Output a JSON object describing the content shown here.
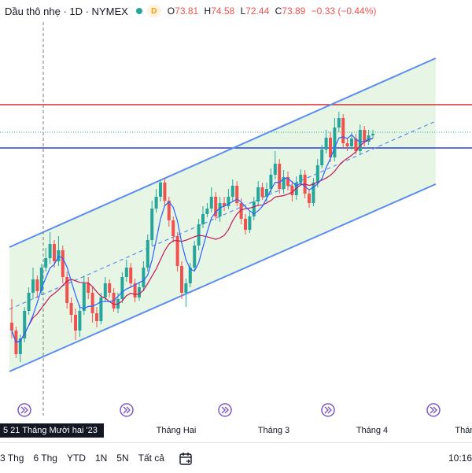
{
  "header": {
    "symbol": "Dầu thô nhẹ · 1D · NYMEX",
    "badge": "D",
    "o_label": "O",
    "o_value": "73.81",
    "h_label": "H",
    "h_value": "74.58",
    "l_label": "L",
    "l_value": "72.44",
    "c_label": "C",
    "c_value": "73.89",
    "change": "−0.33 (−0.44%)"
  },
  "time_axis": {
    "crosshair_label": "5 21 Tháng Mười hai '23",
    "months": [
      "Tháng Hai",
      "Tháng 3",
      "Tháng 4",
      "Tháng"
    ]
  },
  "range_bar": {
    "buttons": [
      "3 Thg",
      "6 Thg",
      "YTD",
      "1N",
      "5N",
      "Tất cả"
    ],
    "time": "10:16"
  },
  "colors": {
    "up": "#26a69a",
    "down": "#ef5350",
    "channel": "#5b8def",
    "channel_fill": "#e3f3e0",
    "hline_red": "#d32f2f",
    "hline_blue": "#2a3fd8",
    "ma_fast": "#2962ff",
    "ma_slow": "#c2185b"
  },
  "icons": [
    "calendar-range-icon",
    "play-forward-icon"
  ],
  "chart_data": {
    "type": "candlestick",
    "channel": {
      "upper": [
        [
          0,
          314
        ],
        [
          86,
          74
        ]
      ],
      "lower": [
        [
          0,
          472
        ],
        [
          86,
          234
        ]
      ],
      "mid": [
        [
          0,
          393
        ],
        [
          86,
          154
        ]
      ]
    },
    "hlines": {
      "red": 133,
      "blue": 188,
      "dotted": 168
    },
    "candles": [
      [
        410,
        420,
        380,
        430
      ],
      [
        420,
        450,
        415,
        455
      ],
      [
        450,
        430,
        425,
        460
      ],
      [
        430,
        395,
        390,
        435
      ],
      [
        395,
        372,
        365,
        400
      ],
      [
        372,
        355,
        340,
        380
      ],
      [
        355,
        370,
        350,
        378
      ],
      [
        370,
        340,
        335,
        375
      ],
      [
        340,
        328,
        315,
        345
      ],
      [
        328,
        310,
        295,
        335
      ],
      [
        310,
        332,
        305,
        340
      ],
      [
        332,
        318,
        300,
        338
      ],
      [
        318,
        352,
        312,
        360
      ],
      [
        352,
        385,
        345,
        392
      ],
      [
        385,
        400,
        378,
        410
      ],
      [
        400,
        420,
        392,
        432
      ],
      [
        420,
        395,
        388,
        428
      ],
      [
        395,
        360,
        350,
        400
      ],
      [
        360,
        372,
        352,
        380
      ],
      [
        372,
        398,
        365,
        410
      ],
      [
        398,
        408,
        390,
        416
      ],
      [
        408,
        378,
        372,
        412
      ],
      [
        378,
        360,
        352,
        384
      ],
      [
        360,
        372,
        355,
        378
      ],
      [
        372,
        392,
        366,
        396
      ],
      [
        392,
        380,
        372,
        398
      ],
      [
        380,
        352,
        346,
        385
      ],
      [
        352,
        340,
        330,
        358
      ],
      [
        340,
        360,
        334,
        366
      ],
      [
        360,
        378,
        354,
        384
      ],
      [
        378,
        365,
        358,
        382
      ],
      [
        365,
        340,
        332,
        370
      ],
      [
        340,
        305,
        298,
        345
      ],
      [
        305,
        265,
        255,
        312
      ],
      [
        265,
        250,
        240,
        270
      ],
      [
        250,
        232,
        228,
        256
      ],
      [
        232,
        255,
        226,
        262
      ],
      [
        255,
        280,
        250,
        288
      ],
      [
        280,
        300,
        275,
        308
      ],
      [
        300,
        338,
        295,
        345
      ],
      [
        338,
        372,
        332,
        380
      ],
      [
        372,
        360,
        354,
        390
      ],
      [
        360,
        340,
        334,
        365
      ],
      [
        340,
        312,
        306,
        345
      ],
      [
        312,
        285,
        278,
        318
      ],
      [
        285,
        272,
        262,
        290
      ],
      [
        272,
        265,
        258,
        276
      ],
      [
        265,
        250,
        238,
        270
      ],
      [
        250,
        275,
        244,
        280
      ],
      [
        275,
        258,
        250,
        282
      ],
      [
        258,
        262,
        250,
        268
      ],
      [
        262,
        250,
        240,
        266
      ],
      [
        250,
        236,
        228,
        256
      ],
      [
        236,
        258,
        230,
        262
      ],
      [
        258,
        278,
        252,
        285
      ],
      [
        278,
        292,
        272,
        298
      ],
      [
        292,
        275,
        268,
        296
      ],
      [
        275,
        256,
        250,
        280
      ],
      [
        256,
        238,
        230,
        262
      ],
      [
        238,
        250,
        232,
        254
      ],
      [
        250,
        240,
        232,
        256
      ],
      [
        240,
        222,
        214,
        245
      ],
      [
        222,
        208,
        192,
        228
      ],
      [
        208,
        240,
        202,
        246
      ],
      [
        240,
        225,
        216,
        246
      ],
      [
        225,
        236,
        218,
        242
      ],
      [
        236,
        248,
        230,
        256
      ],
      [
        248,
        232,
        224,
        254
      ],
      [
        232,
        222,
        215,
        236
      ],
      [
        222,
        246,
        216,
        252
      ],
      [
        246,
        258,
        240,
        264
      ],
      [
        258,
        232,
        226,
        262
      ],
      [
        232,
        210,
        202,
        238
      ],
      [
        210,
        190,
        184,
        214
      ],
      [
        190,
        175,
        165,
        195
      ],
      [
        175,
        200,
        168,
        206
      ],
      [
        200,
        162,
        150,
        205
      ],
      [
        162,
        150,
        142,
        168
      ],
      [
        150,
        182,
        145,
        188
      ],
      [
        182,
        186,
        176,
        192
      ],
      [
        186,
        176,
        168,
        190
      ],
      [
        176,
        192,
        170,
        196
      ],
      [
        192,
        165,
        158,
        196
      ],
      [
        165,
        180,
        160,
        186
      ],
      [
        180,
        172,
        165,
        184
      ],
      [
        172,
        170,
        165,
        176
      ]
    ]
  }
}
